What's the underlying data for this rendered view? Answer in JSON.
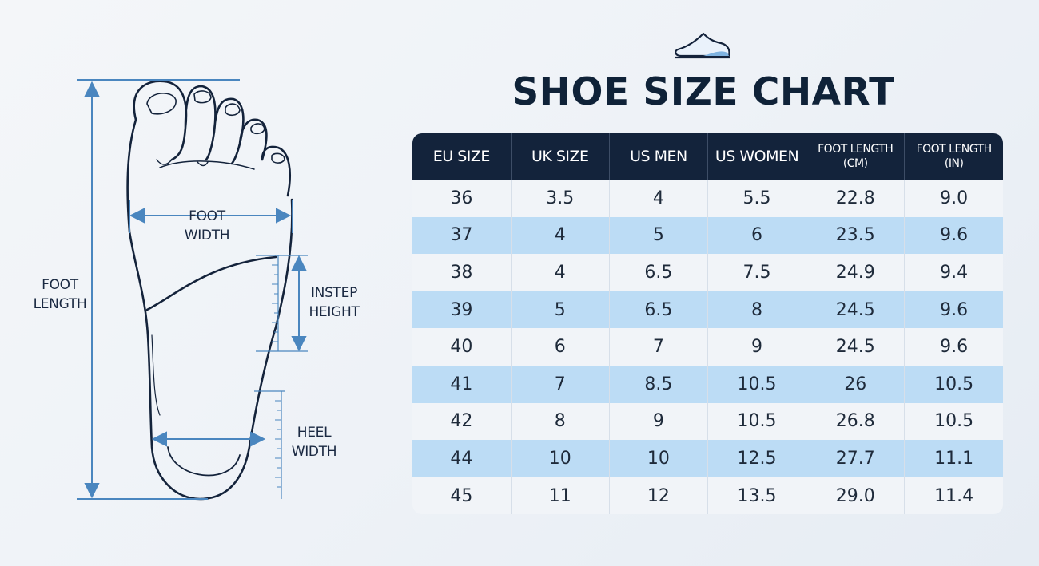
{
  "title": "SHOE SIZE CHART",
  "diagram": {
    "foot_length": "FOOT LENGTH",
    "foot_width": "FOOT WIDTH",
    "instep_height": "INSTEP HEIGHT",
    "heel_width": "HEEL WIDTH"
  },
  "table": {
    "header": [
      "EU SIZE",
      "UK SIZE",
      "US MEN",
      "US WOMEN",
      "FOOT LENGTH (CM)",
      "FOOT LENGTH (IN)"
    ],
    "rows": [
      [
        "36",
        "3.5",
        "4",
        "5.5",
        "22.8",
        "9.0"
      ],
      [
        "37",
        "4",
        "5",
        "6",
        "23.5",
        "9.6"
      ],
      [
        "38",
        "4",
        "6.5",
        "7.5",
        "24.9",
        "9.4"
      ],
      [
        "39",
        "5",
        "6.5",
        "8",
        "24.5",
        "9.6"
      ],
      [
        "40",
        "6",
        "7",
        "9",
        "24.5",
        "9.6"
      ],
      [
        "41",
        "7",
        "8.5",
        "10.5",
        "26",
        "10.5"
      ],
      [
        "42",
        "8",
        "9",
        "10.5",
        "26.8",
        "10.5"
      ],
      [
        "44",
        "10",
        "10",
        "12.5",
        "27.7",
        "11.1"
      ],
      [
        "45",
        "11",
        "12",
        "13.5",
        "29.0",
        "11.4"
      ]
    ]
  }
}
